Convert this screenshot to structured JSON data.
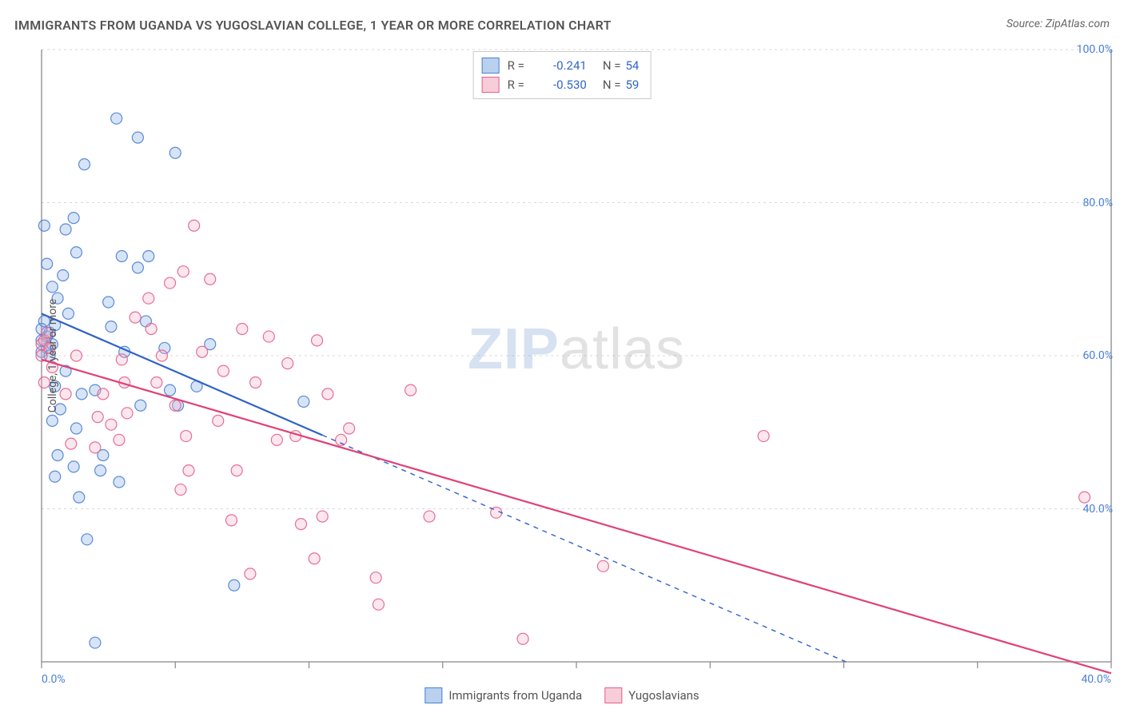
{
  "title": "IMMIGRANTS FROM UGANDA VS YUGOSLAVIAN COLLEGE, 1 YEAR OR MORE CORRELATION CHART",
  "source_label": "Source: ZipAtlas.com",
  "y_axis_label": "College, 1 year or more",
  "watermark": {
    "part1": "ZIP",
    "part2": "atlas"
  },
  "chart": {
    "type": "scatter",
    "background_color": "#ffffff",
    "grid_color": "#d8d8d8",
    "axis_color": "#888888",
    "tick_color": "#888888",
    "tick_label_color": "#4a80d6",
    "title_fontsize": 16,
    "label_fontsize": 14,
    "xlim": [
      0,
      40
    ],
    "ylim": [
      20,
      100
    ],
    "x_ticks": [
      0,
      5,
      10,
      15,
      20,
      25,
      30,
      35,
      40
    ],
    "x_tick_labels_shown": {
      "0": "0.0%",
      "40": "40.0%"
    },
    "y_ticks": [
      40,
      60,
      80,
      100
    ],
    "y_tick_label_suffix": "%",
    "marker_radius": 7,
    "marker_fill_opacity": 0.3,
    "marker_stroke_opacity": 0.9,
    "marker_stroke_width": 1.2,
    "series": [
      {
        "name": "Immigrants from Uganda",
        "color_fill": "#7ba7e0",
        "color_stroke": "#4a80d6",
        "trend_color": "#2f62c9",
        "trend_width": 2.2,
        "trend_solid_until_x": 10.5,
        "trend": {
          "x0": 0,
          "y0": 65.5,
          "x1": 40,
          "y1": 5.0
        },
        "R": "-0.241",
        "N": "54",
        "points": [
          [
            0.2,
            62.5
          ],
          [
            0.2,
            61.0
          ],
          [
            0.3,
            63.0
          ],
          [
            0.0,
            63.5
          ],
          [
            0.1,
            64.5
          ],
          [
            0.5,
            64.0
          ],
          [
            0.4,
            61.5
          ],
          [
            0.0,
            60.5
          ],
          [
            0.3,
            60.0
          ],
          [
            0.6,
            67.5
          ],
          [
            0.4,
            69.0
          ],
          [
            0.8,
            70.5
          ],
          [
            0.2,
            72.0
          ],
          [
            1.3,
            73.5
          ],
          [
            0.1,
            77.0
          ],
          [
            1.2,
            78.0
          ],
          [
            0.9,
            76.5
          ],
          [
            1.6,
            85.0
          ],
          [
            2.8,
            91.0
          ],
          [
            3.6,
            88.5
          ],
          [
            5.0,
            86.5
          ],
          [
            3.0,
            73.0
          ],
          [
            3.6,
            71.5
          ],
          [
            2.5,
            67.0
          ],
          [
            2.6,
            63.8
          ],
          [
            3.9,
            64.5
          ],
          [
            3.1,
            60.5
          ],
          [
            0.9,
            58.0
          ],
          [
            0.5,
            56.0
          ],
          [
            1.5,
            55.0
          ],
          [
            2.0,
            55.5
          ],
          [
            1.3,
            50.5
          ],
          [
            2.3,
            47.0
          ],
          [
            0.6,
            47.0
          ],
          [
            2.2,
            45.0
          ],
          [
            0.5,
            44.2
          ],
          [
            1.2,
            45.5
          ],
          [
            1.4,
            41.5
          ],
          [
            1.7,
            36.0
          ],
          [
            2.9,
            43.5
          ],
          [
            0.4,
            51.5
          ],
          [
            5.8,
            56.0
          ],
          [
            5.1,
            53.5
          ],
          [
            3.7,
            53.5
          ],
          [
            6.3,
            61.5
          ],
          [
            4.6,
            61.0
          ],
          [
            4.8,
            55.5
          ],
          [
            4.0,
            73.0
          ],
          [
            7.2,
            30.0
          ],
          [
            9.8,
            54.0
          ],
          [
            2.0,
            22.5
          ],
          [
            0.7,
            53.0
          ],
          [
            1.0,
            65.5
          ],
          [
            0.0,
            62.0
          ]
        ]
      },
      {
        "name": "Yugoslavians",
        "color_fill": "#f2b1c4",
        "color_stroke": "#e55f8b",
        "trend_color": "#e04177",
        "trend_width": 2.2,
        "trend_solid_until_x": 40,
        "trend": {
          "x0": 0,
          "y0": 59.5,
          "x1": 40,
          "y1": 18.5
        },
        "R": "-0.530",
        "N": "59",
        "points": [
          [
            0.0,
            61.5
          ],
          [
            0.1,
            62.0
          ],
          [
            0.3,
            61.0
          ],
          [
            0.2,
            63.0
          ],
          [
            0.0,
            60.0
          ],
          [
            0.4,
            58.5
          ],
          [
            0.1,
            56.5
          ],
          [
            0.9,
            55.0
          ],
          [
            1.3,
            60.0
          ],
          [
            1.1,
            48.5
          ],
          [
            2.1,
            52.0
          ],
          [
            2.0,
            48.0
          ],
          [
            2.6,
            51.0
          ],
          [
            2.3,
            55.0
          ],
          [
            3.1,
            56.5
          ],
          [
            3.2,
            52.5
          ],
          [
            3.0,
            59.5
          ],
          [
            2.9,
            49.0
          ],
          [
            3.5,
            65.0
          ],
          [
            4.1,
            63.5
          ],
          [
            4.0,
            67.5
          ],
          [
            4.8,
            69.5
          ],
          [
            5.3,
            71.0
          ],
          [
            5.7,
            77.0
          ],
          [
            4.5,
            60.0
          ],
          [
            4.3,
            56.5
          ],
          [
            5.0,
            53.5
          ],
          [
            5.4,
            49.5
          ],
          [
            5.2,
            42.5
          ],
          [
            5.5,
            45.0
          ],
          [
            6.6,
            51.5
          ],
          [
            6.0,
            60.5
          ],
          [
            6.3,
            70.0
          ],
          [
            6.8,
            58.0
          ],
          [
            7.5,
            63.5
          ],
          [
            7.1,
            38.5
          ],
          [
            7.3,
            45.0
          ],
          [
            7.8,
            31.5
          ],
          [
            8.0,
            56.5
          ],
          [
            8.5,
            62.5
          ],
          [
            8.8,
            49.0
          ],
          [
            9.2,
            59.0
          ],
          [
            9.5,
            49.5
          ],
          [
            9.7,
            38.0
          ],
          [
            10.2,
            33.5
          ],
          [
            10.3,
            62.0
          ],
          [
            10.5,
            39.0
          ],
          [
            10.7,
            55.0
          ],
          [
            11.2,
            49.0
          ],
          [
            11.5,
            50.5
          ],
          [
            12.5,
            31.0
          ],
          [
            12.6,
            27.5
          ],
          [
            13.8,
            55.5
          ],
          [
            14.5,
            39.0
          ],
          [
            17.0,
            39.5
          ],
          [
            18.0,
            23.0
          ],
          [
            21.0,
            32.5
          ],
          [
            27.0,
            49.5
          ],
          [
            39.0,
            41.5
          ]
        ]
      }
    ]
  },
  "stats_box": {
    "rows": [
      {
        "swatch_fill": "#b9d0ef",
        "swatch_border": "#4a80d6",
        "R_label": "R =",
        "R_value": "-0.241",
        "N_label": "N =",
        "N_value": "54"
      },
      {
        "swatch_fill": "#f6cdd9",
        "swatch_border": "#e55f8b",
        "R_label": "R =",
        "R_value": "-0.530",
        "N_label": "N =",
        "N_value": "59"
      }
    ]
  },
  "bottom_legend": [
    {
      "swatch_fill": "#b9d0ef",
      "swatch_border": "#4a80d6",
      "label": "Immigrants from Uganda"
    },
    {
      "swatch_fill": "#f6cdd9",
      "swatch_border": "#e55f8b",
      "label": "Yugoslavians"
    }
  ]
}
